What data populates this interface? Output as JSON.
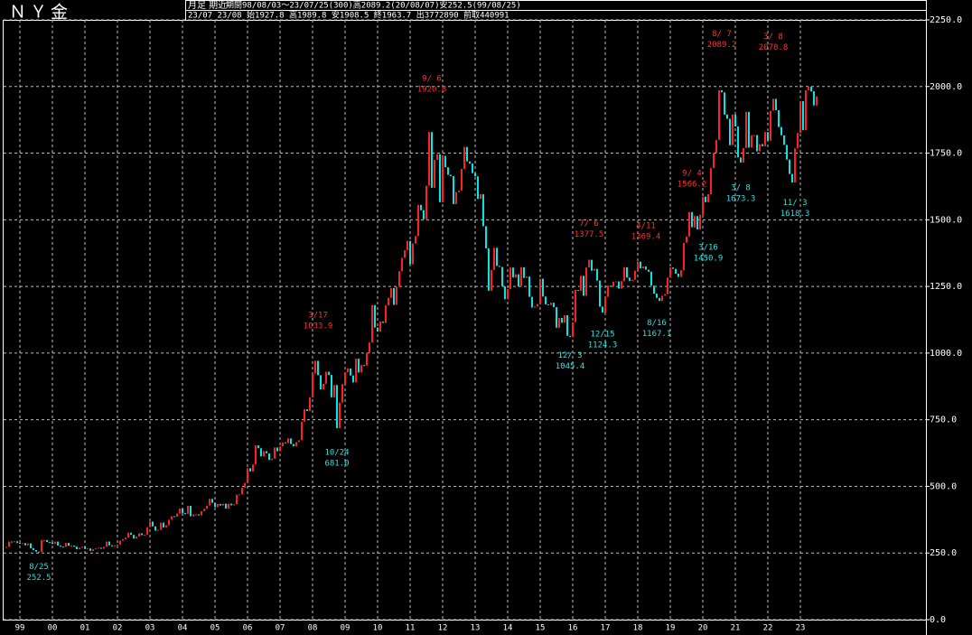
{
  "chart_data": {
    "type": "candlestick",
    "title": "ＮＹ金",
    "subtitle": "月足 期近",
    "period_info": "期間98/08/03～23/07/25(300)高2089.2(20/08/07)安252.5(99/08/25)",
    "latest_info": "23/07 23/08 始1927.8 高1989.8 安1908.5 終1963.7 出3772890 前取440991",
    "up_color": "#ff2020",
    "down_color": "#00e8e8",
    "grid": true,
    "ylim": [
      0,
      2250
    ],
    "yticks": [
      {
        "value": 0,
        "label": "0.0"
      },
      {
        "value": 250,
        "label": "250.0"
      },
      {
        "value": 500,
        "label": "500.0"
      },
      {
        "value": 750,
        "label": "750.0"
      },
      {
        "value": 1000,
        "label": "1000.0"
      },
      {
        "value": 1250,
        "label": "1250.0"
      },
      {
        "value": 1500,
        "label": "1500.0"
      },
      {
        "value": 1750,
        "label": "1750.0"
      },
      {
        "value": 2000,
        "label": "2000.0"
      },
      {
        "value": 2250,
        "label": "2250.0"
      }
    ],
    "year_labels": [
      "99",
      "00",
      "01",
      "02",
      "03",
      "04",
      "05",
      "06",
      "07",
      "08",
      "09",
      "10",
      "11",
      "12",
      "13",
      "14",
      "15",
      "16",
      "17",
      "18",
      "19",
      "20",
      "21",
      "22",
      "23"
    ],
    "close": [
      273,
      293,
      292,
      294,
      288,
      287,
      287,
      279,
      286,
      268,
      261,
      255,
      254,
      299,
      299,
      291,
      290,
      284,
      293,
      278,
      274,
      273,
      288,
      277,
      278,
      274,
      264,
      270,
      274,
      265,
      267,
      258,
      264,
      267,
      270,
      266,
      273,
      293,
      279,
      275,
      279,
      282,
      296,
      302,
      308,
      326,
      318,
      304,
      312,
      324,
      317,
      319,
      347,
      368,
      350,
      334,
      337,
      364,
      346,
      354,
      375,
      388,
      386,
      398,
      417,
      400,
      397,
      427,
      388,
      395,
      395,
      391,
      407,
      416,
      428,
      453,
      438,
      422,
      434,
      428,
      435,
      417,
      435,
      429,
      433,
      469,
      470,
      495,
      513,
      568,
      556,
      582,
      654,
      643,
      613,
      632,
      624,
      599,
      604,
      646,
      632,
      650,
      665,
      662,
      680,
      659,
      650,
      666,
      673,
      743,
      789,
      783,
      834,
      923,
      971,
      917,
      864,
      885,
      930,
      918,
      834,
      880,
      718,
      814,
      884,
      928,
      942,
      916,
      890,
      979,
      927,
      955,
      953,
      1001,
      1040,
      1180,
      1096,
      1081,
      1118,
      1113,
      1179,
      1207,
      1244,
      1181,
      1248,
      1307,
      1357,
      1386,
      1421,
      1333,
      1411,
      1439,
      1556,
      1536,
      1502,
      1628,
      1829,
      1620,
      1725,
      1746,
      1566,
      1740,
      1697,
      1669,
      1664,
      1559,
      1604,
      1610,
      1691,
      1773,
      1719,
      1711,
      1675,
      1663,
      1578,
      1596,
      1476,
      1393,
      1234,
      1312,
      1395,
      1327,
      1323,
      1250,
      1202,
      1240,
      1321,
      1284,
      1296,
      1250,
      1322,
      1282,
      1287,
      1211,
      1171,
      1175,
      1184,
      1279,
      1212,
      1183,
      1180,
      1189,
      1172,
      1095,
      1132,
      1114,
      1142,
      1065,
      1061,
      1116,
      1237,
      1234,
      1290,
      1215,
      1321,
      1350,
      1309,
      1316,
      1272,
      1174,
      1152,
      1211,
      1253,
      1249,
      1268,
      1269,
      1242,
      1270,
      1322,
      1283,
      1271,
      1275,
      1309,
      1343,
      1318,
      1325,
      1313,
      1305,
      1253,
      1223,
      1207,
      1196,
      1215,
      1221,
      1283,
      1321,
      1316,
      1298,
      1286,
      1311,
      1414,
      1437,
      1529,
      1472,
      1514,
      1464,
      1519,
      1587,
      1566,
      1596,
      1694,
      1751,
      1800,
      1986,
      1978,
      1895,
      1879,
      1780,
      1895,
      1850,
      1734,
      1715,
      1769,
      1905,
      1771,
      1817,
      1818,
      1757,
      1784,
      1776,
      1829,
      1797,
      1909,
      1954,
      1911,
      1848,
      1817,
      1781,
      1726,
      1672,
      1640,
      1768,
      1826,
      1945,
      1836,
      1986,
      1999,
      1982,
      1929,
      1963
    ],
    "annotations": [
      {
        "date": "8/25",
        "value": 252.5,
        "kind": "low"
      },
      {
        "date": "3/17",
        "value": 1033.9,
        "kind": "high"
      },
      {
        "date": "10/24",
        "value": 681.0,
        "value_label": "681.0",
        "kind": "low"
      },
      {
        "date": "9/ 6",
        "value": 1920.8,
        "kind": "high"
      },
      {
        "date": "12/ 3",
        "value": 1045.4,
        "kind": "low"
      },
      {
        "date": "7/ 6",
        "value": 1377.5,
        "kind": "high"
      },
      {
        "date": "12/15",
        "value": 1124.3,
        "kind": "low"
      },
      {
        "date": "4/11",
        "value": 1369.4,
        "kind": "high"
      },
      {
        "date": "8/16",
        "value": 1167.1,
        "kind": "low"
      },
      {
        "date": "9/ 4",
        "value": 1566.2,
        "kind": "high"
      },
      {
        "date": "3/16",
        "value": 1450.9,
        "kind": "low"
      },
      {
        "date": "8/ 7",
        "value": 2089.2,
        "kind": "high"
      },
      {
        "date": "3/ 8",
        "value": 1673.3,
        "kind": "low"
      },
      {
        "date": "3/ 8",
        "value": 2078.8,
        "kind": "high"
      },
      {
        "date": "11/ 3",
        "value": 1618.3,
        "kind": "low"
      }
    ]
  }
}
